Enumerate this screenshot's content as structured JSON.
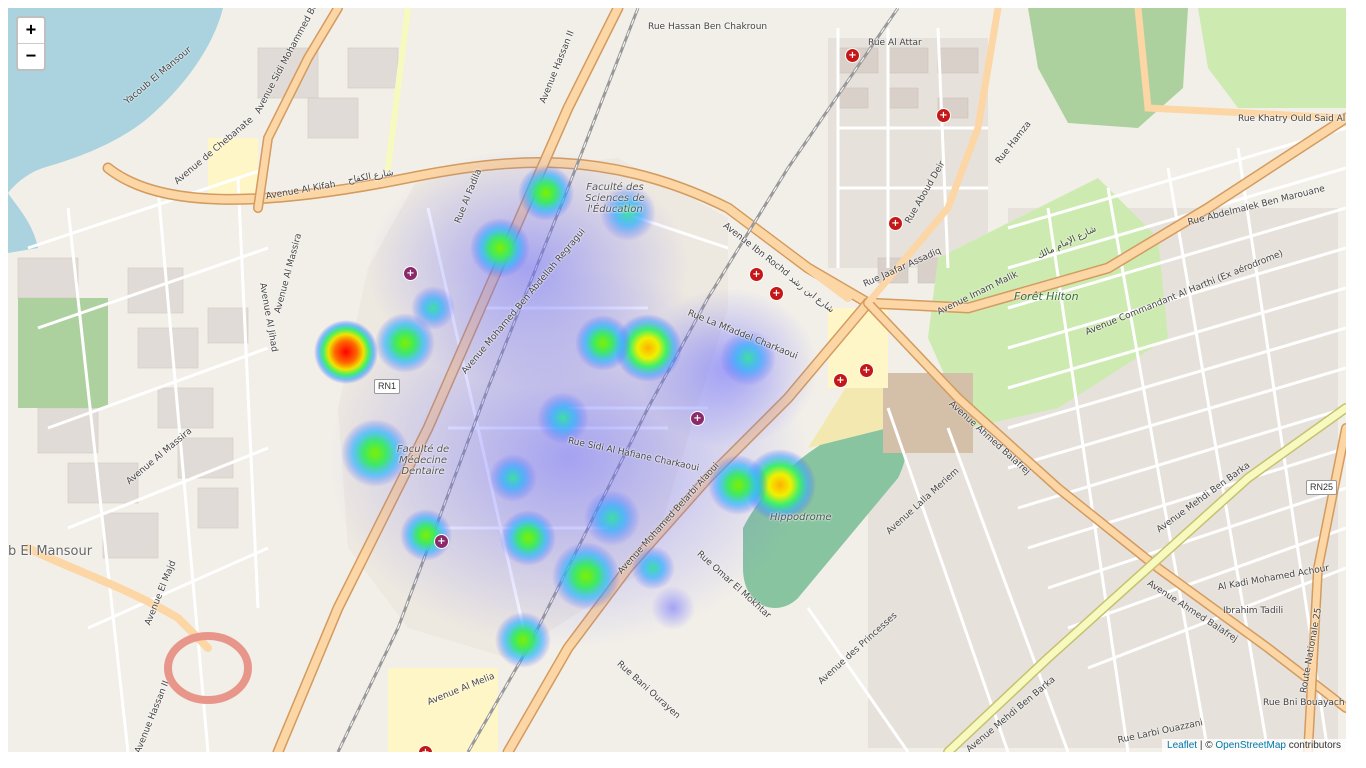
{
  "map": {
    "zoom_in_label": "+",
    "zoom_out_label": "−",
    "attribution": {
      "leaflet": "Leaflet",
      "separator": " | © ",
      "osm": "OpenStreetMap",
      "contributors": " contributors"
    },
    "route_shields": {
      "rn1": "RN1",
      "rn25": "RN25"
    },
    "labels": {
      "hassan_ben_chakroun": "Rue Hassan Ben Chakroun",
      "avenue_hassan_ii_top": "Avenue Hassan II",
      "avenue_sidi_mohammed": "Avenue Sidi Mohammed Ben",
      "avenue_al_kifah": "Avenue Al Kifah",
      "avenue_al_kifah_ar": "شارع الكفاح",
      "avenue_ibn_rochd": "Avenue Ibn Rochd",
      "avenue_ibn_rochd_ar": "شارع ابن رشد",
      "avenue_imam_malik": "Avenue Imam Malik",
      "avenue_imam_malik_ar": "شارع الإمام مالك",
      "foret_hilton": "Forêt Hilton",
      "faculte_sciences": "Faculté des Sciences de l'Éducation",
      "faculte_medecine": "Faculté de Médecine Dentaire",
      "hippodrome": "Hippodrome",
      "avenue_ahmed_balafrej": "Avenue Ahmed Balafrej",
      "avenue_mehdi_ben_barka": "Avenue Mehdi Ben Barka",
      "avenue_mohamed_belarbi": "Avenue Mohamed Belarbi Alaoui",
      "avenue_hassan_ii_bottom": "Avenue Hassan II",
      "avenue_al_melia": "Avenue Al Melia",
      "rue_sidi_al_hafiane": "Rue Sidi Al Hafiane Charkaoui",
      "rue_khatry": "Rue Khatry Ould Said Al Joumni",
      "yacoub_el_mansour": "Yacoub El Mansour",
      "place_el_mansour": "b El Mansour",
      "avenue_chebanate": "Avenue de Chebanate",
      "avenue_al_massira": "Avenue Al Massira",
      "avenue_al_jihad": "Avenue Al Jihad",
      "avenue_el_majd": "Avenue El Majd",
      "route_nationale_25": "Route Nationale 25",
      "avenue_laila_meriem": "Avenue Lalla Meriem",
      "avenue_des_princesses": "Avenue des Princesses",
      "avenue_commandant": "Avenue Commandant Al Harthi (Ex aérodrome)",
      "avenue_mohamed_ben_abdellah": "Avenue Mohamed Ben Abdellah Regragui",
      "rue_la_mfaddel": "Rue La Mfaddel Charkaoui",
      "rue_abdelmalek": "Rue Abdelmalek Ben Marouane",
      "rue_oumar_el_mokhtar": "Rue Omar El Mokhtar",
      "rue_bani_ourayen": "Rue Bani Ourayen",
      "rue_jaafar_assadiq": "Rue Jaafar Assadiq",
      "rue_hamza": "Rue Hamza",
      "rue_abou_deir": "Rue Aboud Deir",
      "al_kadi_mohamed_achour": "Al Kadi Mohamed Achour",
      "ibrahim_tadili": "Ibrahim Tadili",
      "rue_larbi_ouazzani": "Rue Larbi Ouazzani",
      "rue_bni_bouayach": "Rue Bni Bouayach",
      "rue_attar": "Rue Al Attar",
      "rue_al_fadila": "Rue Al Fadila"
    },
    "heatmap": {
      "scale": "intensity 0–1",
      "colors": [
        "#5b5bff",
        "#2ac4ff",
        "#3ef06a",
        "#e8f000",
        "#ff8c00",
        "#ff0000"
      ],
      "points": [
        {
          "name": "hot-spot-red",
          "intensity": 1.0
        },
        {
          "name": "hippodrome-yellow",
          "intensity": 0.85
        },
        {
          "name": "fsde-east-yellow",
          "intensity": 0.72
        },
        {
          "name": "cluster-1",
          "intensity": 0.6
        },
        {
          "name": "cluster-2",
          "intensity": 0.6
        }
      ]
    }
  }
}
